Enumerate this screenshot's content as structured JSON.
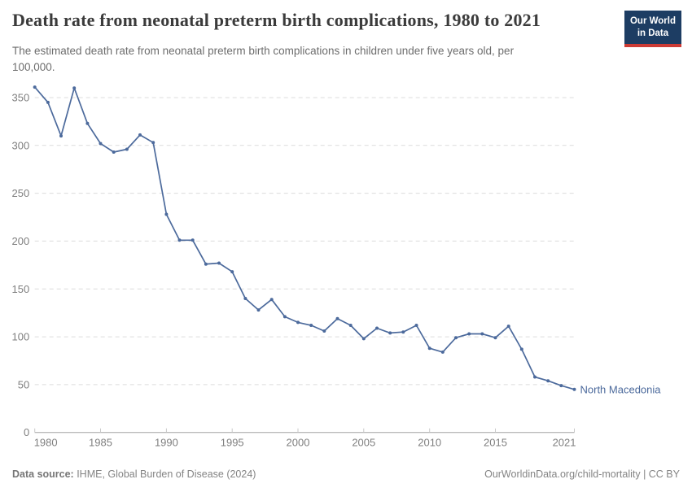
{
  "header": {
    "title": "Death rate from neonatal preterm birth complications, 1980 to 2021",
    "subtitle_line1": "The estimated death rate from neonatal preterm birth complications in children under five years old, per",
    "subtitle_line2": "100,000.",
    "logo": {
      "line1": "Our World",
      "line2": "in Data",
      "bg_color": "#1d3d63",
      "accent_color": "#cc3b35"
    }
  },
  "chart_data": {
    "type": "line",
    "title": "Death rate from neonatal preterm birth complications, 1980 to 2021",
    "xlabel": "",
    "ylabel": "",
    "x": [
      1980,
      1981,
      1982,
      1983,
      1984,
      1985,
      1986,
      1987,
      1988,
      1989,
      1990,
      1991,
      1992,
      1993,
      1994,
      1995,
      1996,
      1997,
      1998,
      1999,
      2000,
      2001,
      2002,
      2003,
      2004,
      2005,
      2006,
      2007,
      2008,
      2009,
      2010,
      2011,
      2012,
      2013,
      2014,
      2015,
      2016,
      2017,
      2018,
      2019,
      2020,
      2021
    ],
    "series": [
      {
        "name": "North Macedonia",
        "color": "#4c6a9c",
        "values": [
          361,
          345,
          310,
          360,
          323,
          302,
          293,
          296,
          311,
          303,
          228,
          201,
          201,
          176,
          177,
          168,
          140,
          128,
          139,
          121,
          115,
          112,
          106,
          119,
          112,
          98,
          109,
          104,
          105,
          112,
          88,
          84,
          99,
          103,
          103,
          99,
          111,
          87,
          58,
          54,
          49,
          45
        ]
      }
    ],
    "ylim": [
      0,
      365
    ],
    "yticks": [
      0,
      50,
      100,
      150,
      200,
      250,
      300,
      350
    ],
    "xticks": [
      1980,
      1985,
      1990,
      1995,
      2000,
      2005,
      2010,
      2015,
      2021
    ],
    "grid": "horizontal-dashed",
    "gridline_color": "#dcdcdc",
    "axis_color": "#a3a3a3",
    "tick_label_color": "#7f7f7f",
    "legend": "line-end-label"
  },
  "footer": {
    "source_label": "Data source:",
    "source_value": " IHME, Global Burden of Disease (2024)",
    "credit": "OurWorldinData.org/child-mortality | CC BY"
  }
}
